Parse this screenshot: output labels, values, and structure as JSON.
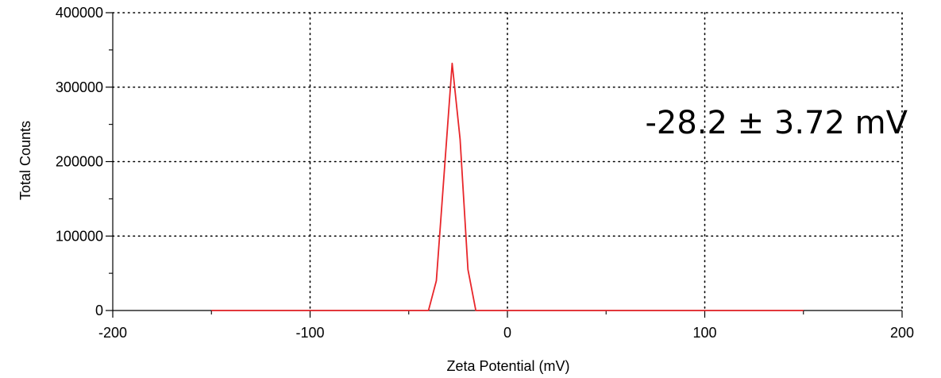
{
  "chart_data": {
    "type": "line",
    "title": "",
    "xlabel": "Zeta Potential (mV)",
    "ylabel": "Total Counts",
    "xlim": [
      -200,
      200
    ],
    "ylim": [
      0,
      400000
    ],
    "x_ticks": [
      -200,
      -100,
      0,
      100,
      200
    ],
    "x_tick_labels": [
      "-200",
      "-100",
      "0",
      "100",
      "200"
    ],
    "y_ticks": [
      0,
      100000,
      200000,
      300000,
      400000
    ],
    "y_tick_labels": [
      "0",
      "100000",
      "200000",
      "300000",
      "400000"
    ],
    "x_minor_step": 50,
    "y_minor_step": 50000,
    "grid": true,
    "grid_style": "dotted",
    "series": [
      {
        "color": "#e8262a",
        "x": [
          -150,
          -100,
          -50,
          -40,
          -36,
          -28,
          -24,
          -20,
          -16,
          0,
          50,
          100,
          150
        ],
        "y": [
          0,
          0,
          0,
          0,
          40000,
          332000,
          230000,
          55000,
          0,
          0,
          0,
          0,
          0
        ]
      }
    ],
    "baseline_color": "#e8262a",
    "annotation": {
      "text": "-28.2 ± 3.72 mV",
      "position": "top-right"
    }
  }
}
